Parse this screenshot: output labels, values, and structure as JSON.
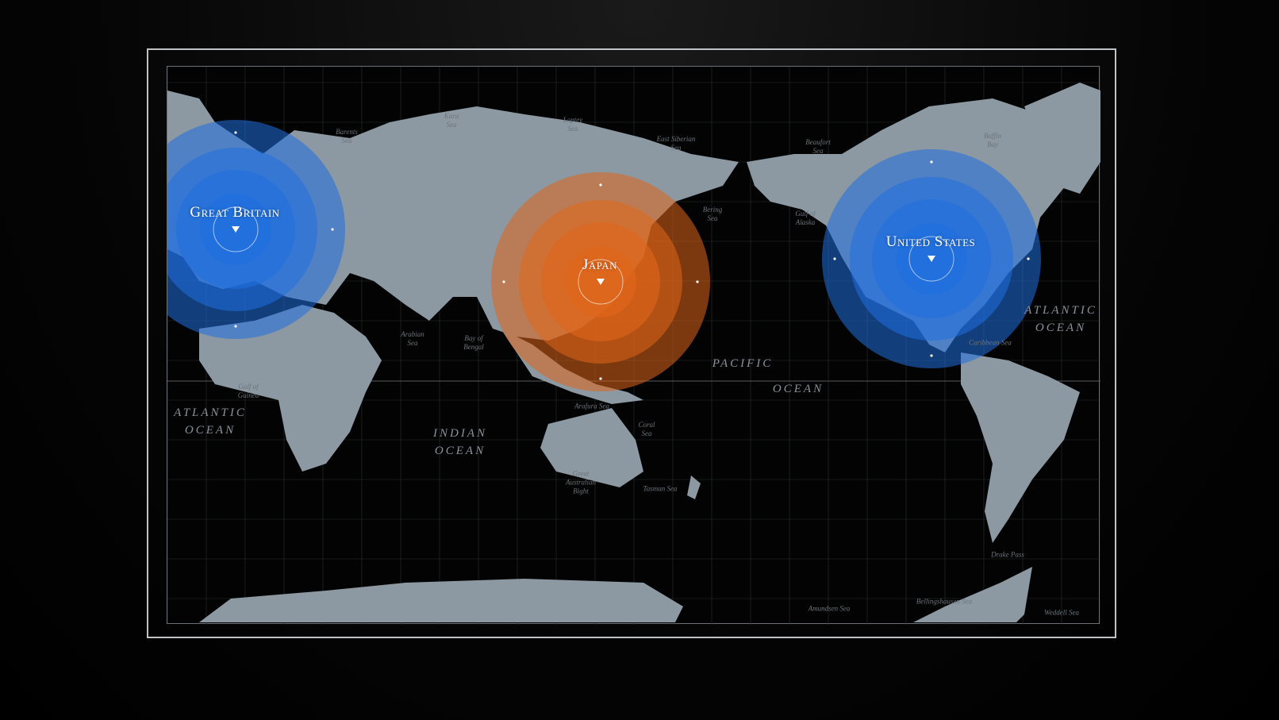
{
  "markers": [
    {
      "label": "Great Britain",
      "color": "blue",
      "icon": "triangle-down-icon"
    },
    {
      "label": "Japan",
      "color": "orange",
      "icon": "triangle-down-icon"
    },
    {
      "label": "United States",
      "color": "blue",
      "icon": "triangle-down-icon"
    }
  ],
  "colors": {
    "blue": "#1f6fe0",
    "orange": "#e0661a",
    "land": "#8c98a2",
    "background": "#000000",
    "frame": "#bfc3c6"
  },
  "oceans": [
    {
      "name": "ATLANTIC\nOCEAN"
    },
    {
      "name": "INDIAN\nOCEAN"
    },
    {
      "name": "PACIFIC"
    },
    {
      "name": "OCEAN"
    },
    {
      "name": "ATLANTIC\nOCEAN"
    }
  ],
  "seas": [
    {
      "name": "Barents\nSea"
    },
    {
      "name": "Kara\nSea"
    },
    {
      "name": "Laptev\nSea"
    },
    {
      "name": "East Siberian\nSea"
    },
    {
      "name": "Beaufort\nSea"
    },
    {
      "name": "Baffin\nBay"
    },
    {
      "name": "Bering\nSea"
    },
    {
      "name": "Gulf of\nAlaska"
    },
    {
      "name": "Arabian\nSea"
    },
    {
      "name": "Bay of\nBengal"
    },
    {
      "name": "Coral\nSea"
    },
    {
      "name": "Tasman Sea"
    },
    {
      "name": "Great\nAustralian\nBight"
    },
    {
      "name": "Gulf of\nGuinea"
    },
    {
      "name": "Caribbean Sea"
    },
    {
      "name": "Drake Pass"
    },
    {
      "name": "Amundsen Sea"
    },
    {
      "name": "Bellingshausen Sea"
    },
    {
      "name": "Weddell Sea"
    },
    {
      "name": "Arafura Sea"
    }
  ]
}
